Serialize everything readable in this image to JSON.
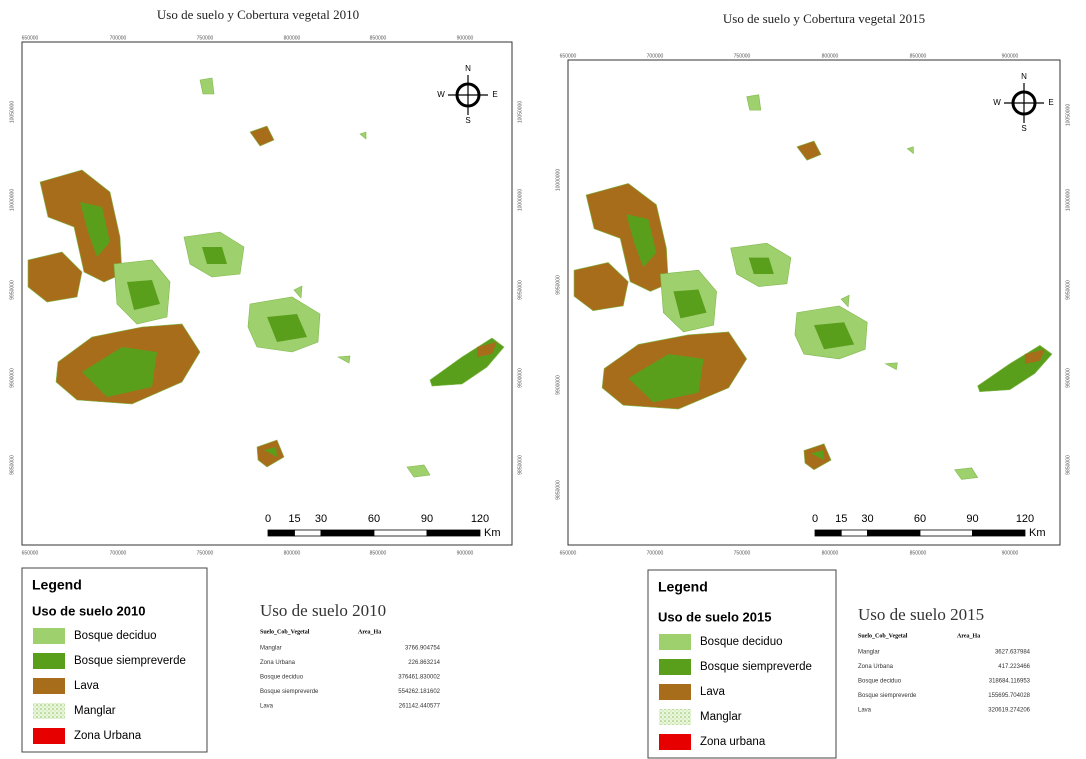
{
  "panels": [
    {
      "title": "Uso de suelo y Cobertura vegetal 2010",
      "x_labels_top": [
        "650000",
        "700000",
        "750000",
        "800000",
        "850000",
        "900000"
      ],
      "x_labels_bottom": [
        "650000",
        "700000",
        "750000",
        "800000",
        "850000",
        "900000"
      ],
      "y_labels_left": [
        "10050000",
        "10000000",
        "9950000",
        "9900000",
        "9850000"
      ],
      "y_labels_right": [
        "10050000",
        "10000000",
        "9950000",
        "9900000",
        "9850000"
      ],
      "compass": {
        "n": "N",
        "s": "S",
        "e": "E",
        "w": "W"
      },
      "scale_ticks": [
        0,
        15,
        30,
        60,
        90,
        120
      ],
      "scale_unit": "Km",
      "legend": {
        "title": "Legend",
        "subtitle": "Uso de suelo 2010",
        "items": [
          {
            "label": "Bosque deciduo",
            "color": "#9fd06e"
          },
          {
            "label": "Bosque siempreverde",
            "color": "#5a9f1c"
          },
          {
            "label": "Lava",
            "color": "#a86d1a"
          },
          {
            "label": "Manglar",
            "color": "pattern"
          },
          {
            "label": "Zona Urbana",
            "color": "#e60000"
          }
        ]
      },
      "table": {
        "title": "Uso de suelo 2010",
        "headers": [
          "Suelo_Cob_Vegetal",
          "Area_Ha"
        ],
        "rows": [
          [
            "Manglar",
            3766.904754
          ],
          [
            "Zona Urbana",
            226.863214
          ],
          [
            "Bosque deciduo",
            376461.830002
          ],
          [
            "Bosque siempreverde",
            554262.181602
          ],
          [
            "Lava",
            261142.440577
          ]
        ]
      }
    },
    {
      "title": "Uso de suelo y Cobertura vegetal 2015",
      "x_labels_top": [
        "650000",
        "700000",
        "750000",
        "800000",
        "850000",
        "900000"
      ],
      "x_labels_bottom": [
        "650000",
        "700000",
        "750000",
        "800000",
        "850000",
        "900000"
      ],
      "y_labels_left": [
        "10000000",
        "9950000",
        "9900000",
        "9850000"
      ],
      "y_labels_right": [
        "10050000",
        "10000000",
        "9950000",
        "9900000",
        "9850000"
      ],
      "compass": {
        "n": "N",
        "s": "S",
        "e": "E",
        "w": "W"
      },
      "scale_ticks": [
        0,
        15,
        30,
        60,
        90,
        120
      ],
      "scale_unit": "Km",
      "legend": {
        "title": "Legend",
        "subtitle": "Uso de suelo 2015",
        "items": [
          {
            "label": "Bosque deciduo",
            "color": "#9fd06e"
          },
          {
            "label": "Bosque siempreverde",
            "color": "#5a9f1c"
          },
          {
            "label": "Lava",
            "color": "#a86d1a"
          },
          {
            "label": "Manglar",
            "color": "pattern"
          },
          {
            "label": "Zona urbana",
            "color": "#e60000"
          }
        ]
      },
      "table": {
        "title": "Uso de suelo 2015",
        "headers": [
          "Suelo_Cob_Vegetal",
          "Area_Ha"
        ],
        "rows": [
          [
            "Manglar",
            3627.637984
          ],
          [
            "Zona Urbana",
            417.223466
          ],
          [
            "Bosque deciduo",
            318684.116953
          ],
          [
            "Bosque siempreverde",
            155695.704028
          ],
          [
            "Lava",
            320619.274206
          ]
        ]
      }
    }
  ]
}
